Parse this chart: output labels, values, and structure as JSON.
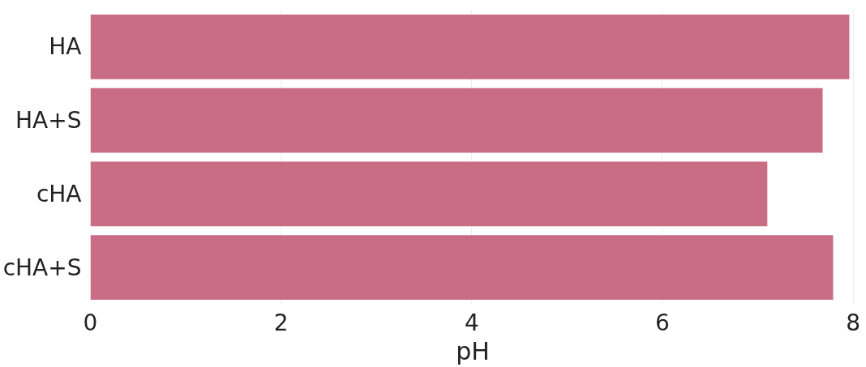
{
  "chart_data": {
    "type": "bar",
    "orientation": "horizontal",
    "xlabel": "pH",
    "categories": [
      "HA",
      "HA+S",
      "cHA",
      "cHA+S"
    ],
    "series": [
      {
        "color": "#c96d84",
        "values": [
          7.96,
          7.68,
          7.1,
          7.79
        ]
      }
    ],
    "xlim": [
      0,
      8.02
    ],
    "xticks": [
      0,
      2,
      4,
      6,
      8
    ],
    "grid": "x"
  }
}
